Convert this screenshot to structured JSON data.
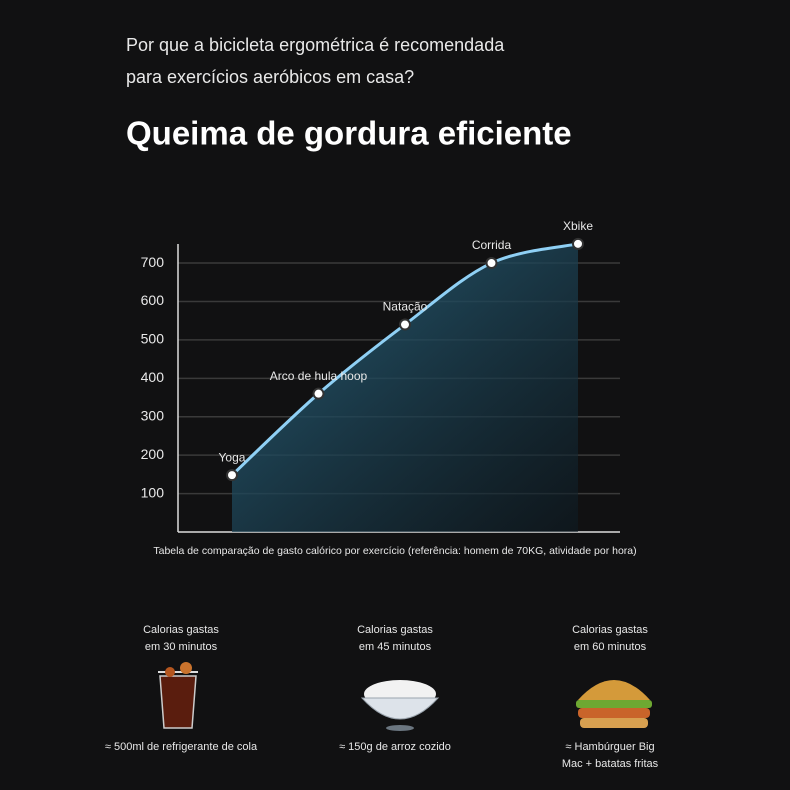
{
  "header": {
    "question": [
      "Por que a bicicleta ergométrica é recomendada",
      "para exercícios aeróbicos em casa?"
    ],
    "title": "Queima de gordura eficiente"
  },
  "chart_data": {
    "type": "line",
    "categories": [
      "Yoga",
      "Arco de hula hoop",
      "Natação",
      "Corrida",
      "Xbike"
    ],
    "values": [
      148,
      360,
      540,
      700,
      750
    ],
    "color": "#8fd0f5",
    "ylim": [
      0,
      760
    ],
    "yticks": [
      100,
      200,
      300,
      400,
      500,
      600,
      700
    ],
    "grid": true,
    "caption": "Tabela de comparação de gasto calórico por exercício (referência: homem de 70KG, atividade por hora)"
  },
  "foods": [
    {
      "heading": [
        "Calorias gastas",
        "em 30 minutos"
      ],
      "item": [
        "≈ 500ml de refrigerante de cola"
      ]
    },
    {
      "heading": [
        "Calorias gastas",
        "em 45 minutos"
      ],
      "item": [
        "≈ 150g de arroz cozido"
      ]
    },
    {
      "heading": [
        "Calorias gastas",
        "em 60 minutos"
      ],
      "item": [
        "≈ Hambúrguer Big",
        "Mac + batatas fritas"
      ]
    }
  ]
}
